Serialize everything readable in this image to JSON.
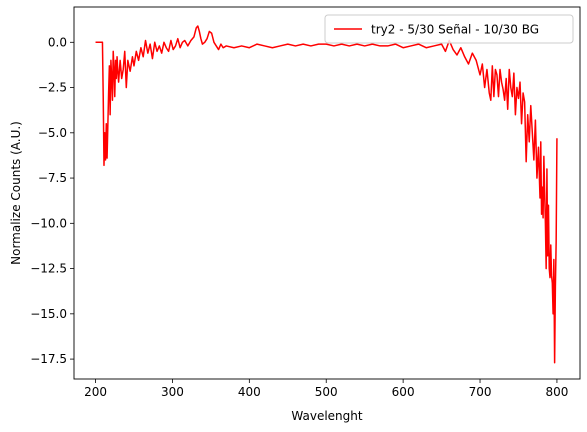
{
  "chart_data": {
    "type": "line",
    "title": "",
    "xlabel": "Wavelenght",
    "ylabel": "Normalize Counts (A.U.)",
    "xlim": [
      172,
      830
    ],
    "ylim": [
      -18.6,
      1.95
    ],
    "xticks": [
      200,
      300,
      400,
      500,
      600,
      700,
      800
    ],
    "yticks": [
      0.0,
      -2.5,
      -5.0,
      -7.5,
      -10.0,
      -12.5,
      -15.0,
      -17.5
    ],
    "ytick_labels": [
      "0.0",
      "−2.5",
      "−5.0",
      "−7.5",
      "−10.0",
      "−12.5",
      "−15.0",
      "−17.5"
    ],
    "grid": false,
    "legend_position": "upper-right",
    "series": [
      {
        "name": "try2 - 5/30 Señal - 10/30 BG",
        "color": "#ff0000",
        "x": [
          200,
          205,
          209,
          210,
          211,
          212,
          213,
          214,
          215,
          216,
          217,
          218,
          219,
          220,
          221,
          222,
          223,
          224,
          225,
          226,
          227,
          228,
          229,
          230,
          232,
          234,
          236,
          238,
          240,
          242,
          245,
          248,
          250,
          253,
          256,
          259,
          262,
          265,
          268,
          271,
          274,
          277,
          280,
          283,
          286,
          289,
          292,
          295,
          298,
          301,
          304,
          307,
          310,
          313,
          316,
          320,
          324,
          328,
          331,
          333,
          335,
          337,
          339,
          342,
          345,
          348,
          351,
          354,
          357,
          360,
          363,
          366,
          370,
          380,
          390,
          400,
          410,
          420,
          430,
          440,
          450,
          460,
          470,
          480,
          490,
          500,
          510,
          520,
          530,
          540,
          550,
          560,
          570,
          580,
          590,
          600,
          610,
          620,
          630,
          640,
          650,
          655,
          660,
          665,
          670,
          675,
          680,
          685,
          690,
          695,
          700,
          703,
          706,
          709,
          712,
          714,
          716,
          718,
          720,
          722,
          724,
          726,
          728,
          730,
          732,
          734,
          736,
          738,
          740,
          742,
          744,
          746,
          748,
          750,
          752,
          754,
          756,
          758,
          760,
          762,
          764,
          766,
          768,
          770,
          772,
          774,
          776,
          778,
          779,
          780,
          781,
          782,
          783,
          784,
          785,
          786,
          787,
          788,
          789,
          790,
          791,
          792,
          793,
          794,
          795,
          796,
          797,
          798,
          799,
          800
        ],
        "values": [
          0.0,
          0.0,
          0.0,
          -3.0,
          -6.8,
          -5.0,
          -6.5,
          -4.5,
          -6.4,
          -4.6,
          -2.8,
          -1.3,
          -4.0,
          -1.0,
          -2.0,
          -3.2,
          -0.5,
          -1.5,
          -3.0,
          -1.0,
          -2.0,
          -0.8,
          -1.6,
          -2.2,
          -1.0,
          -2.0,
          -1.5,
          -0.5,
          -2.5,
          -1.0,
          -1.6,
          -0.8,
          -1.3,
          -0.5,
          -1.0,
          -0.3,
          -0.8,
          0.1,
          -0.6,
          -0.1,
          -0.9,
          0.0,
          -0.5,
          -0.2,
          -0.6,
          0.0,
          -0.3,
          -0.5,
          0.1,
          -0.4,
          -0.2,
          0.2,
          -0.3,
          0.0,
          0.1,
          -0.2,
          0.1,
          0.3,
          0.8,
          0.9,
          0.6,
          0.2,
          -0.1,
          0.0,
          0.2,
          0.6,
          0.5,
          0.0,
          -0.2,
          -0.4,
          -0.1,
          -0.3,
          -0.2,
          -0.3,
          -0.2,
          -0.3,
          -0.1,
          -0.2,
          -0.3,
          -0.2,
          -0.1,
          -0.2,
          -0.1,
          -0.2,
          -0.1,
          -0.1,
          -0.2,
          -0.1,
          -0.2,
          -0.1,
          -0.2,
          -0.1,
          -0.2,
          -0.2,
          -0.1,
          -0.3,
          -0.2,
          -0.1,
          -0.3,
          -0.2,
          -0.1,
          -0.5,
          0.1,
          -0.4,
          -0.7,
          -0.3,
          -0.8,
          -1.2,
          -0.6,
          -1.0,
          -1.8,
          -1.2,
          -2.5,
          -1.5,
          -2.8,
          -3.2,
          -1.3,
          -3.0,
          -1.5,
          -1.8,
          -3.0,
          -1.5,
          -2.2,
          -2.6,
          -3.2,
          -2.0,
          -3.7,
          -1.5,
          -2.5,
          -3.0,
          -1.7,
          -4.0,
          -2.5,
          -3.1,
          -2.2,
          -4.5,
          -2.8,
          -3.3,
          -6.6,
          -4.0,
          -5.5,
          -3.5,
          -5.0,
          -6.5,
          -4.3,
          -7.5,
          -5.8,
          -8.6,
          -5.5,
          -9.5,
          -8.0,
          -9.7,
          -6.3,
          -8.2,
          -10.0,
          -12.5,
          -7.0,
          -11.8,
          -9.0,
          -12.5,
          -13.0,
          -11.2,
          -12.9,
          -13.3,
          -15.0,
          -12.0,
          -17.7,
          -13.5,
          -11.0,
          -5.3
        ]
      }
    ]
  }
}
